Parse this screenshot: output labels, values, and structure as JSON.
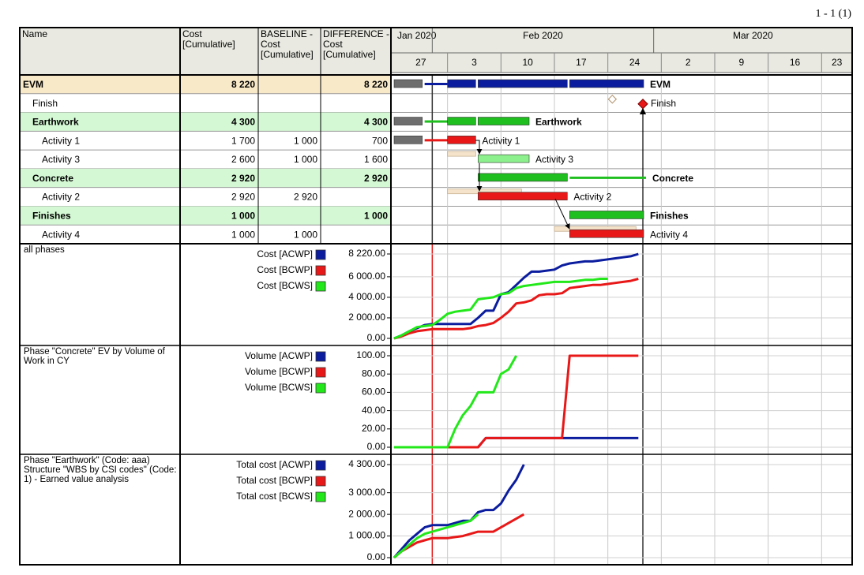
{
  "page_label": "1 - 1 (1)",
  "table": {
    "header": [
      "Name",
      "Cost [Cumulative]",
      "BASELINE - Cost [Cumulative]",
      "DIFFERENCE - Cost [Cumulative]"
    ],
    "rows": [
      {
        "style": "project",
        "cells": [
          "EVM",
          "8 220",
          null,
          "8 220"
        ]
      },
      {
        "style": "milestone",
        "cells": [
          "Finish",
          null,
          null,
          null
        ]
      },
      {
        "style": "phase",
        "cells": [
          "Earthwork",
          "4 300",
          null,
          "4 300"
        ]
      },
      {
        "style": "task",
        "cells": [
          "Activity 1",
          "1 700",
          "1 000",
          "700"
        ]
      },
      {
        "style": "task",
        "cells": [
          "Activity 3",
          "2 600",
          "1 000",
          "1 600"
        ]
      },
      {
        "style": "phase",
        "cells": [
          "Concrete",
          "2 920",
          null,
          "2 920"
        ]
      },
      {
        "style": "task",
        "cells": [
          "Activity 2",
          "2 920",
          "2 920",
          null
        ]
      },
      {
        "style": "phase",
        "cells": [
          "Finishes",
          "1 000",
          null,
          "1 000"
        ]
      },
      {
        "style": "task",
        "cells": [
          "Activity 4",
          "1 000",
          "1 000",
          null
        ]
      }
    ]
  },
  "timeline": {
    "xlim": [
      "2020-01-27",
      "2020-03-27"
    ],
    "months": [
      {
        "value": "2020-01",
        "label": "Jan 2020"
      },
      {
        "value": "2020-02",
        "label": "Feb 2020"
      },
      {
        "value": "2020-03",
        "label": "Mar 2020"
      }
    ],
    "weeks": [
      {
        "value": "2020-01-27",
        "label": "27"
      },
      {
        "value": "2020-02-03",
        "label": "3"
      },
      {
        "value": "2020-02-10",
        "label": "10"
      },
      {
        "value": "2020-02-17",
        "label": "17"
      },
      {
        "value": "2020-02-24",
        "label": "24"
      },
      {
        "value": "2020-03-02",
        "label": "2"
      },
      {
        "value": "2020-03-09",
        "label": "9"
      },
      {
        "value": "2020-03-16",
        "label": "16"
      },
      {
        "value": "2020-03-23",
        "label": "23"
      }
    ],
    "status_date": "2020-02-01"
  },
  "gantt": {
    "rows": [
      {
        "bars": [
          {
            "start": "2020-01-27",
            "end": "2020-01-31",
            "color": "#6e6e6e"
          },
          {
            "start": "2020-01-31",
            "end": "2020-02-03",
            "color": "#0b1d9e",
            "thin": true
          },
          {
            "start": "2020-02-03",
            "end": "2020-02-07",
            "color": "#0b1d9e"
          },
          {
            "start": "2020-02-07",
            "end": "2020-02-19",
            "color": "#0b1d9e"
          },
          {
            "start": "2020-02-19",
            "end": "2020-02-29",
            "color": "#0b1d9e"
          }
        ]
      },
      {
        "milestone": {
          "baseline": "2020-02-25",
          "date": "2020-02-29",
          "color": "#e81818"
        }
      },
      {
        "bars": [
          {
            "start": "2020-01-27",
            "end": "2020-01-31",
            "color": "#6e6e6e"
          },
          {
            "start": "2020-01-31",
            "end": "2020-02-03",
            "color": "#1fbf1f",
            "thin": true
          },
          {
            "start": "2020-02-03",
            "end": "2020-02-07",
            "color": "#1fbf1f"
          },
          {
            "start": "2020-02-07",
            "end": "2020-02-14",
            "color": "#1fbf1f"
          }
        ]
      },
      {
        "bars": [
          {
            "start": "2020-01-27",
            "end": "2020-01-31",
            "color": "#6e6e6e"
          },
          {
            "start": "2020-01-31",
            "end": "2020-02-03",
            "color": "#e81818",
            "thin": true
          },
          {
            "start": "2020-02-03",
            "end": "2020-02-07",
            "color": "#e81818"
          }
        ]
      },
      {
        "baseline": [
          {
            "start": "2020-02-03",
            "end": "2020-02-07"
          }
        ],
        "bars": [
          {
            "start": "2020-02-07",
            "end": "2020-02-14",
            "color": "#8cf08c"
          }
        ]
      },
      {
        "bars": [
          {
            "start": "2020-02-07",
            "end": "2020-02-19",
            "color": "#1fbf1f"
          },
          {
            "start": "2020-02-19",
            "end": "2020-02-29",
            "color": "#1fbf1f",
            "thin": true
          }
        ]
      },
      {
        "baseline": [
          {
            "start": "2020-02-03",
            "end": "2020-02-13"
          }
        ],
        "bars": [
          {
            "start": "2020-02-07",
            "end": "2020-02-19",
            "color": "#e81818"
          }
        ]
      },
      {
        "bars": [
          {
            "start": "2020-02-19",
            "end": "2020-02-29",
            "color": "#1fbf1f"
          }
        ]
      },
      {
        "baseline": [
          {
            "start": "2020-02-17",
            "end": "2020-02-28"
          }
        ],
        "bars": [
          {
            "start": "2020-02-19",
            "end": "2020-02-29",
            "color": "#e81818"
          }
        ]
      }
    ]
  },
  "chart_data": [
    {
      "type": "line",
      "title": "all phases",
      "xlim": [
        "2020-01-27",
        "2020-03-27"
      ],
      "x": [
        "2020-01-27",
        "2020-01-28",
        "2020-01-29",
        "2020-01-30",
        "2020-01-31",
        "2020-02-01",
        "2020-02-02",
        "2020-02-03",
        "2020-02-04",
        "2020-02-05",
        "2020-02-06",
        "2020-02-07",
        "2020-02-08",
        "2020-02-09",
        "2020-02-10",
        "2020-02-11",
        "2020-02-12",
        "2020-02-13",
        "2020-02-14",
        "2020-02-15",
        "2020-02-16",
        "2020-02-17",
        "2020-02-18",
        "2020-02-19",
        "2020-02-20",
        "2020-02-21",
        "2020-02-22",
        "2020-02-23",
        "2020-02-24",
        "2020-02-25",
        "2020-02-26",
        "2020-02-27",
        "2020-02-28"
      ],
      "ylim": [
        0,
        8220
      ],
      "yticks": [
        {
          "value": 0,
          "label": "0.00"
        },
        {
          "value": 2000,
          "label": "2 000.00"
        },
        {
          "value": 4000,
          "label": "4 000.00"
        },
        {
          "value": 6000,
          "label": "6 000.00"
        },
        {
          "value": 8220,
          "label": "8 220.00"
        }
      ],
      "grid": true,
      "series": [
        {
          "name": "Cost [ACWP]",
          "color": "#0b1d9e",
          "values": [
            0,
            300,
            700,
            1000,
            1300,
            1400,
            1400,
            1400,
            1400,
            1400,
            1400,
            2000,
            2700,
            2700,
            4300,
            4500,
            5200,
            5900,
            6500,
            6500,
            6600,
            6700,
            7100,
            7300,
            7400,
            7500,
            7500,
            7600,
            7700,
            7800,
            7900,
            8000,
            8220
          ]
        },
        {
          "name": "Cost [BCWP]",
          "color": "#e81818",
          "values": [
            0,
            200,
            500,
            700,
            800,
            900,
            900,
            900,
            900,
            900,
            1000,
            1200,
            1300,
            1500,
            2000,
            2600,
            3400,
            3500,
            3700,
            4200,
            4300,
            4300,
            4400,
            4900,
            5000,
            5100,
            5200,
            5200,
            5300,
            5400,
            5500,
            5600,
            5800
          ]
        },
        {
          "name": "Cost [BCWS]",
          "color": "#22e81a",
          "values": [
            0,
            300,
            700,
            1100,
            1200,
            1300,
            1800,
            2400,
            2600,
            2700,
            2800,
            3800,
            3900,
            4000,
            4300,
            4400,
            4900,
            5100,
            5200,
            5300,
            5400,
            5500,
            5500,
            5500,
            5600,
            5700,
            5700,
            5800,
            5800,
            null,
            null,
            null,
            null
          ]
        }
      ]
    },
    {
      "type": "line",
      "title": "Phase \"Concrete\" EV by Volume of Work in CY",
      "xlim": [
        "2020-01-27",
        "2020-03-27"
      ],
      "x": [
        "2020-01-27",
        "2020-01-28",
        "2020-01-29",
        "2020-01-30",
        "2020-01-31",
        "2020-02-01",
        "2020-02-02",
        "2020-02-03",
        "2020-02-04",
        "2020-02-05",
        "2020-02-06",
        "2020-02-07",
        "2020-02-08",
        "2020-02-09",
        "2020-02-10",
        "2020-02-11",
        "2020-02-12",
        "2020-02-13",
        "2020-02-14",
        "2020-02-15",
        "2020-02-16",
        "2020-02-17",
        "2020-02-18",
        "2020-02-19",
        "2020-02-20",
        "2020-02-21",
        "2020-02-22",
        "2020-02-23",
        "2020-02-24",
        "2020-02-25",
        "2020-02-26",
        "2020-02-27",
        "2020-02-28"
      ],
      "ylim": [
        0,
        100
      ],
      "yticks": [
        {
          "value": 0,
          "label": "0.00"
        },
        {
          "value": 20,
          "label": "20.00"
        },
        {
          "value": 40,
          "label": "40.00"
        },
        {
          "value": 60,
          "label": "60.00"
        },
        {
          "value": 80,
          "label": "80.00"
        },
        {
          "value": 100,
          "label": "100.00"
        }
      ],
      "grid": true,
      "series": [
        {
          "name": "Volume [ACWP]",
          "color": "#0b1d9e",
          "values": [
            0,
            0,
            0,
            0,
            0,
            0,
            0,
            0,
            0,
            0,
            0,
            0,
            10,
            10,
            10,
            10,
            10,
            10,
            10,
            10,
            10,
            10,
            10,
            10,
            10,
            10,
            10,
            10,
            10,
            10,
            10,
            10,
            10
          ]
        },
        {
          "name": "Volume [BCWP]",
          "color": "#e81818",
          "values": [
            0,
            0,
            0,
            0,
            0,
            0,
            0,
            0,
            0,
            0,
            0,
            0,
            10,
            10,
            10,
            10,
            10,
            10,
            10,
            10,
            10,
            10,
            10,
            100,
            100,
            100,
            100,
            100,
            100,
            100,
            100,
            100,
            100
          ]
        },
        {
          "name": "Volume [BCWS]",
          "color": "#22e81a",
          "values": [
            0,
            0,
            0,
            0,
            0,
            0,
            0,
            0,
            20,
            35,
            45,
            60,
            60,
            60,
            80,
            85,
            100,
            null,
            null,
            null,
            null,
            null,
            null,
            null,
            null,
            null,
            null,
            null,
            null,
            null,
            null,
            null,
            null
          ]
        }
      ]
    },
    {
      "type": "line",
      "title": "Phase \"Earthwork\" (Code: aaa) Structure \"WBS by CSI codes\" (Code: 1) - Earned value analysis",
      "xlim": [
        "2020-01-27",
        "2020-03-27"
      ],
      "x": [
        "2020-01-27",
        "2020-01-28",
        "2020-01-29",
        "2020-01-30",
        "2020-01-31",
        "2020-02-01",
        "2020-02-02",
        "2020-02-03",
        "2020-02-04",
        "2020-02-05",
        "2020-02-06",
        "2020-02-07",
        "2020-02-08",
        "2020-02-09",
        "2020-02-10",
        "2020-02-11",
        "2020-02-12",
        "2020-02-13"
      ],
      "ylim": [
        0,
        4300
      ],
      "yticks": [
        {
          "value": 0,
          "label": "0.00"
        },
        {
          "value": 1000,
          "label": "1 000.00"
        },
        {
          "value": 2000,
          "label": "2 000.00"
        },
        {
          "value": 3000,
          "label": "3 000.00"
        },
        {
          "value": 4300,
          "label": "4 300.00"
        }
      ],
      "grid": true,
      "series": [
        {
          "name": "Total cost [ACWP]",
          "color": "#0b1d9e",
          "values": [
            0,
            400,
            800,
            1100,
            1400,
            1500,
            1500,
            1500,
            1600,
            1700,
            1700,
            2100,
            2200,
            2200,
            2500,
            3100,
            3600,
            4300
          ]
        },
        {
          "name": "Total cost [BCWP]",
          "color": "#e81818",
          "values": [
            0,
            300,
            500,
            700,
            800,
            900,
            900,
            900,
            950,
            1000,
            1100,
            1200,
            1200,
            1200,
            1400,
            1600,
            1800,
            2000
          ]
        },
        {
          "name": "Total cost [BCWS]",
          "color": "#22e81a",
          "values": [
            0,
            300,
            600,
            900,
            1100,
            1200,
            1300,
            1400,
            1500,
            1600,
            1700,
            2000,
            null,
            null,
            null,
            null,
            null,
            null
          ]
        }
      ]
    }
  ]
}
